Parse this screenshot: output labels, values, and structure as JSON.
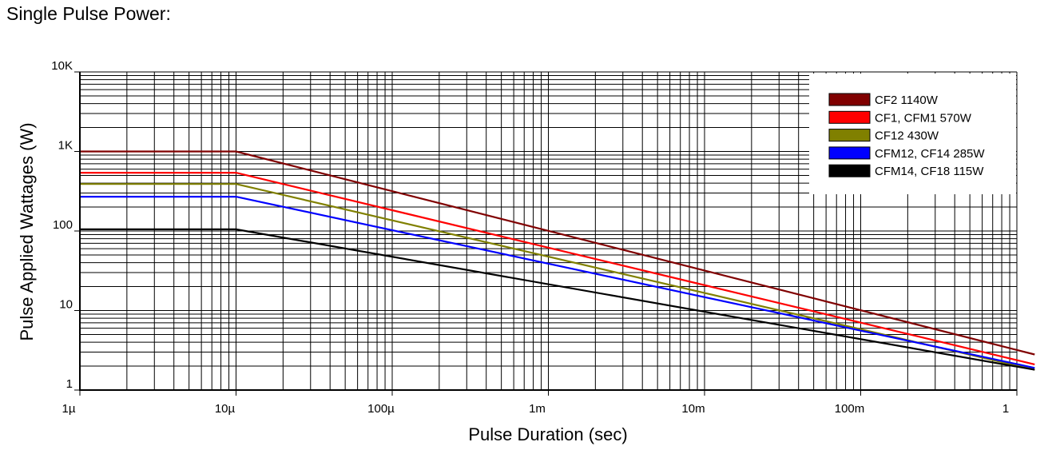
{
  "page": {
    "title": "Single Pulse Power:"
  },
  "chart_data": {
    "type": "line",
    "title": "",
    "xlabel": "Pulse Duration (sec)",
    "ylabel": "Pulse Applied Wattages (W)",
    "xscale": "log",
    "yscale": "log",
    "xlim": [
      1e-06,
      1.3
    ],
    "ylim": [
      1,
      10000
    ],
    "grid": true,
    "legend_position": "top-right",
    "x_ticks": [
      {
        "value": 1e-06,
        "label": "1µ"
      },
      {
        "value": 1e-05,
        "label": "10µ"
      },
      {
        "value": 0.0001,
        "label": "100µ"
      },
      {
        "value": 0.001,
        "label": "1m"
      },
      {
        "value": 0.01,
        "label": "10m"
      },
      {
        "value": 0.1,
        "label": "100m"
      },
      {
        "value": 1,
        "label": "1"
      }
    ],
    "y_ticks": [
      {
        "value": 1,
        "label": "1"
      },
      {
        "value": 10,
        "label": "10"
      },
      {
        "value": 100,
        "label": "100"
      },
      {
        "value": 1000,
        "label": "1K"
      },
      {
        "value": 10000,
        "label": "10K"
      }
    ],
    "series": [
      {
        "name": "CF2  1140W",
        "color": "#800000",
        "x": [
          1e-06,
          1e-05,
          1.3
        ],
        "y": [
          1000,
          1000,
          2.8
        ]
      },
      {
        "name": "CF1, CFM1  570W",
        "color": "#ff0000",
        "x": [
          1e-06,
          1e-05,
          1.3
        ],
        "y": [
          540,
          540,
          2.1
        ]
      },
      {
        "name": "CF12  430W",
        "color": "#808000",
        "x": [
          1e-06,
          1e-05,
          1.3
        ],
        "y": [
          390,
          390,
          1.8
        ]
      },
      {
        "name": "CFM12, CF14  285W",
        "color": "#0000ff",
        "x": [
          1e-06,
          1e-05,
          1.3
        ],
        "y": [
          270,
          270,
          1.9
        ]
      },
      {
        "name": "CFM14, CF18  115W",
        "color": "#000000",
        "x": [
          1e-06,
          1e-05,
          1.3
        ],
        "y": [
          105,
          105,
          1.8
        ]
      }
    ]
  }
}
